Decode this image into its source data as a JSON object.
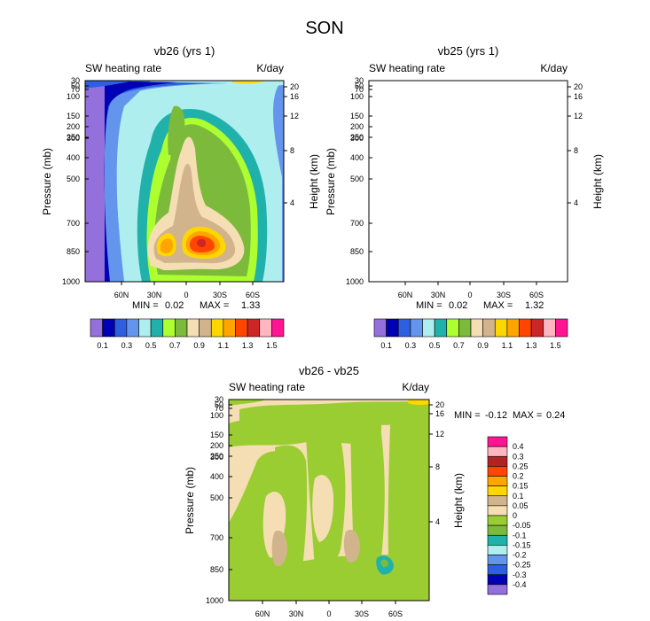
{
  "figure_title": "SON",
  "chart_data": [
    {
      "type": "heatmap",
      "title": "vb26 (yrs 1)",
      "left_string": "SW heating rate",
      "right_string": "K/day",
      "ylabel": "Pressure (mb)",
      "ylabel_right": "Height (km)",
      "x_ticks": [
        "60N",
        "30N",
        "0",
        "30S",
        "60S"
      ],
      "y_ticks": [
        "30",
        "50",
        "70",
        "100",
        "150",
        "200",
        "250",
        "300",
        "400",
        "500",
        "700",
        "850",
        "1000"
      ],
      "y_right_ticks": [
        "20",
        "16",
        "12",
        "8",
        "4"
      ],
      "min_label": "MIN =",
      "min_value": "0.02",
      "max_label": "MAX =",
      "max_value": "1.33",
      "colorbar_labels": [
        "0.1",
        "0.3",
        "0.5",
        "0.7",
        "0.9",
        "1.1",
        "1.3",
        "1.5"
      ],
      "colorbar_colors": [
        "#9370db",
        "#0000b4",
        "#2e5fe0",
        "#6495ed",
        "#afeeee",
        "#20b2aa",
        "#adff2f",
        "#7cba3c",
        "#f5deb3",
        "#d2b48c",
        "#ffd700",
        "#ffa500",
        "#ff4500",
        "#cd2626",
        "#ffb6c1",
        "#ff1493"
      ]
    },
    {
      "type": "heatmap",
      "title": "vb25 (yrs 1)",
      "left_string": "SW heating rate",
      "right_string": "K/day",
      "ylabel": "Pressure (mb)",
      "ylabel_right": "Height (km)",
      "x_ticks": [
        "60N",
        "30N",
        "0",
        "30S",
        "60S"
      ],
      "y_ticks": [
        "30",
        "50",
        "70",
        "100",
        "150",
        "200",
        "250",
        "300",
        "400",
        "500",
        "700",
        "850",
        "1000"
      ],
      "y_right_ticks": [
        "20",
        "16",
        "12",
        "8",
        "4"
      ],
      "min_label": "MIN =",
      "min_value": "0.02",
      "max_label": "MAX =",
      "max_value": "1.32",
      "colorbar_labels": [
        "0.1",
        "0.3",
        "0.5",
        "0.7",
        "0.9",
        "1.1",
        "1.3",
        "1.5"
      ],
      "colorbar_colors": [
        "#9370db",
        "#0000b4",
        "#2e5fe0",
        "#6495ed",
        "#afeeee",
        "#20b2aa",
        "#adff2f",
        "#7cba3c",
        "#f5deb3",
        "#d2b48c",
        "#ffd700",
        "#ffa500",
        "#ff4500",
        "#cd2626",
        "#ffb6c1",
        "#ff1493"
      ]
    },
    {
      "type": "heatmap",
      "title": "vb26 - vb25",
      "left_string": "SW heating rate",
      "right_string": "K/day",
      "ylabel": "Pressure (mb)",
      "ylabel_right": "Height (km)",
      "x_ticks": [
        "60N",
        "30N",
        "0",
        "30S",
        "60S"
      ],
      "y_ticks": [
        "30",
        "50",
        "70",
        "100",
        "150",
        "200",
        "250",
        "300",
        "400",
        "500",
        "700",
        "850",
        "1000"
      ],
      "y_right_ticks": [
        "20",
        "16",
        "12",
        "8",
        "4"
      ],
      "min_label": "MIN =",
      "min_value": "-0.12",
      "max_label": "MAX =",
      "max_value": "0.24",
      "colorbar_labels": [
        "0.4",
        "0.3",
        "0.25",
        "0.2",
        "0.15",
        "0.1",
        "0.05",
        "0",
        "-0.05",
        "-0.1",
        "-0.15",
        "-0.2",
        "-0.25",
        "-0.3",
        "-0.4"
      ],
      "colorbar_colors": [
        "#ff1493",
        "#ffb6c1",
        "#b22222",
        "#ff4500",
        "#ffa500",
        "#ffd700",
        "#d2b48c",
        "#f5deb3",
        "#9acd32",
        "#7cba3c",
        "#20b2aa",
        "#afeeee",
        "#6495ed",
        "#2e5fe0",
        "#0000b4",
        "#9370db"
      ]
    }
  ]
}
